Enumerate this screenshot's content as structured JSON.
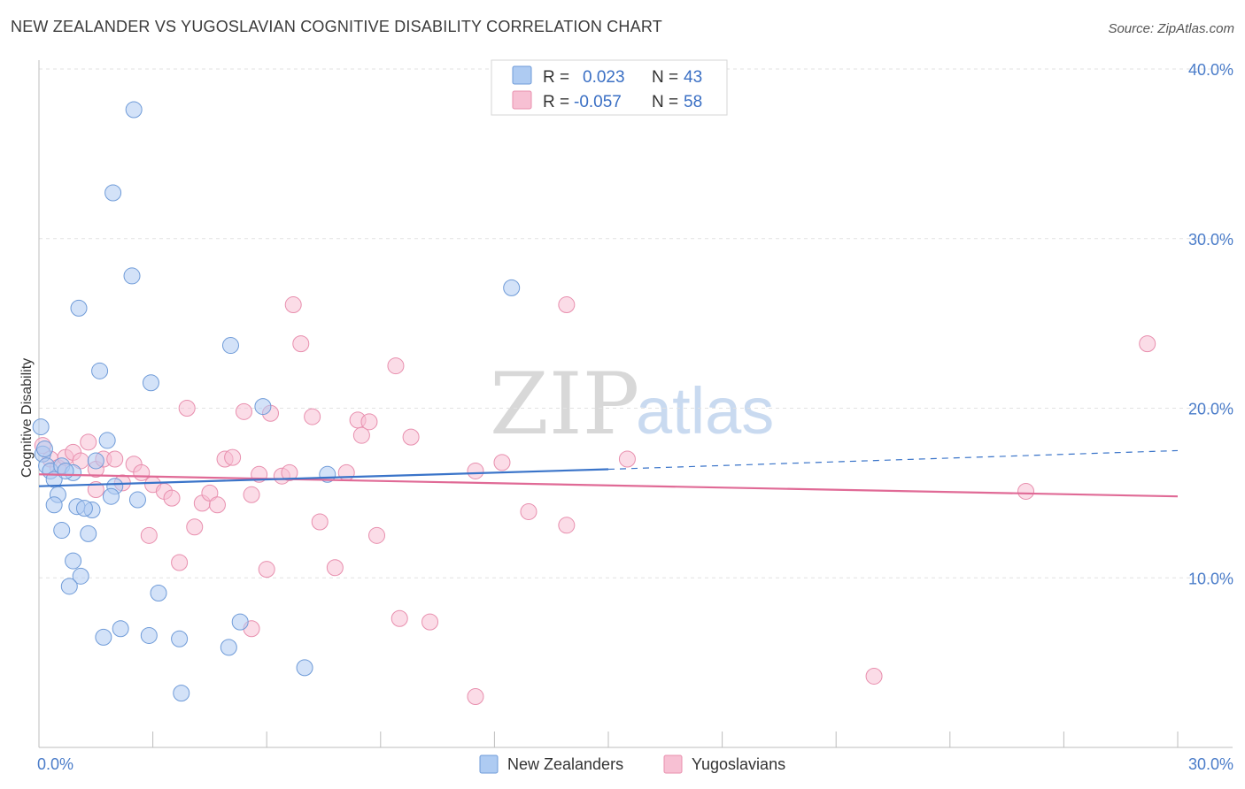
{
  "title": "NEW ZEALANDER VS YUGOSLAVIAN COGNITIVE DISABILITY CORRELATION CHART",
  "source": "Source: ZipAtlas.com",
  "watermark": {
    "zip": "ZIP",
    "atlas": "atlas"
  },
  "colors": {
    "blue_fill": "#aecbf2",
    "blue_stroke": "#6f9bd8",
    "blue_line": "#3a74c9",
    "pink_fill": "#f7c0d3",
    "pink_stroke": "#e88fae",
    "pink_line": "#e06a96",
    "grid": "#e2e2e2",
    "tick_text": "#4a7cc9"
  },
  "legend": {
    "rows": [
      {
        "r_label": "R =",
        "r_value": "0.023",
        "n_label": "N =",
        "n_value": "43"
      },
      {
        "r_label": "R =",
        "r_value": "-0.057",
        "n_label": "N =",
        "n_value": "58"
      }
    ]
  },
  "chart_data": {
    "type": "scatter",
    "ylabel": "Cognitive Disability",
    "xlim": [
      0,
      30
    ],
    "ylim": [
      0,
      40
    ],
    "x_tick_labels": [
      "0.0%",
      "30.0%"
    ],
    "y_ticks": [
      10,
      20,
      30,
      40
    ],
    "y_tick_labels": [
      "10.0%",
      "20.0%",
      "30.0%",
      "40.0%"
    ],
    "grid": true,
    "legend_position": "top-center",
    "series": [
      {
        "name": "New Zealanders",
        "trend": {
          "x0": 0,
          "y0": 15.4,
          "x1": 15,
          "y1": 16.4,
          "dashed_to_x": 30,
          "dashed_to_y": 17.5
        },
        "points": [
          [
            0.1,
            17.3
          ],
          [
            0.15,
            17.6
          ],
          [
            0.2,
            16.6
          ],
          [
            0.3,
            16.3
          ],
          [
            0.4,
            15.8
          ],
          [
            0.6,
            16.6
          ],
          [
            0.9,
            16.2
          ],
          [
            0.5,
            14.9
          ],
          [
            0.4,
            14.3
          ],
          [
            1.0,
            14.2
          ],
          [
            1.4,
            14.0
          ],
          [
            0.6,
            12.8
          ],
          [
            1.3,
            12.6
          ],
          [
            0.9,
            11.0
          ],
          [
            1.1,
            10.1
          ],
          [
            0.8,
            9.5
          ],
          [
            1.5,
            16.9
          ],
          [
            1.8,
            18.1
          ],
          [
            2.0,
            15.4
          ],
          [
            1.9,
            14.8
          ],
          [
            2.6,
            14.6
          ],
          [
            1.6,
            22.2
          ],
          [
            1.05,
            25.9
          ],
          [
            2.45,
            27.8
          ],
          [
            1.95,
            32.7
          ],
          [
            2.5,
            37.6
          ],
          [
            2.95,
            21.5
          ],
          [
            5.05,
            23.7
          ],
          [
            5.9,
            20.1
          ],
          [
            7.6,
            16.1
          ],
          [
            12.45,
            27.1
          ],
          [
            3.15,
            9.1
          ],
          [
            2.15,
            7.0
          ],
          [
            1.7,
            6.5
          ],
          [
            2.9,
            6.6
          ],
          [
            3.7,
            6.4
          ],
          [
            5.3,
            7.4
          ],
          [
            5.0,
            5.9
          ],
          [
            7.0,
            4.7
          ],
          [
            3.75,
            3.2
          ],
          [
            0.05,
            18.9
          ],
          [
            1.2,
            14.1
          ],
          [
            0.7,
            16.3
          ]
        ]
      },
      {
        "name": "Yugoslavians",
        "trend": {
          "x0": 0,
          "y0": 16.1,
          "x1": 30,
          "y1": 14.8
        },
        "points": [
          [
            0.1,
            17.8
          ],
          [
            0.3,
            17.0
          ],
          [
            0.5,
            16.5
          ],
          [
            0.7,
            17.1
          ],
          [
            0.9,
            17.4
          ],
          [
            1.1,
            16.9
          ],
          [
            1.3,
            18.0
          ],
          [
            1.5,
            16.4
          ],
          [
            1.7,
            17.0
          ],
          [
            2.0,
            17.0
          ],
          [
            2.2,
            15.6
          ],
          [
            2.5,
            16.7
          ],
          [
            2.7,
            16.2
          ],
          [
            3.0,
            15.5
          ],
          [
            3.3,
            15.1
          ],
          [
            3.5,
            14.7
          ],
          [
            3.9,
            20.0
          ],
          [
            4.1,
            13.0
          ],
          [
            4.3,
            14.4
          ],
          [
            4.5,
            15.0
          ],
          [
            4.7,
            14.3
          ],
          [
            4.9,
            17.0
          ],
          [
            5.1,
            17.1
          ],
          [
            5.4,
            19.8
          ],
          [
            5.6,
            14.9
          ],
          [
            5.8,
            16.1
          ],
          [
            6.1,
            19.7
          ],
          [
            6.4,
            16.0
          ],
          [
            6.6,
            16.2
          ],
          [
            6.7,
            26.1
          ],
          [
            6.9,
            23.8
          ],
          [
            7.2,
            19.5
          ],
          [
            7.4,
            13.3
          ],
          [
            7.8,
            10.6
          ],
          [
            8.1,
            16.2
          ],
          [
            8.4,
            19.3
          ],
          [
            8.5,
            18.4
          ],
          [
            8.7,
            19.2
          ],
          [
            8.9,
            12.5
          ],
          [
            9.4,
            22.5
          ],
          [
            9.8,
            18.3
          ],
          [
            9.5,
            7.6
          ],
          [
            10.3,
            7.4
          ],
          [
            11.5,
            16.3
          ],
          [
            12.2,
            16.8
          ],
          [
            12.9,
            13.9
          ],
          [
            13.9,
            26.1
          ],
          [
            13.9,
            13.1
          ],
          [
            15.5,
            17.0
          ],
          [
            11.5,
            3.0
          ],
          [
            22.0,
            4.2
          ],
          [
            26.0,
            15.1
          ],
          [
            29.2,
            23.8
          ],
          [
            6.0,
            10.5
          ],
          [
            3.7,
            10.9
          ],
          [
            5.6,
            7.0
          ],
          [
            2.9,
            12.5
          ],
          [
            1.5,
            15.2
          ]
        ]
      }
    ]
  }
}
